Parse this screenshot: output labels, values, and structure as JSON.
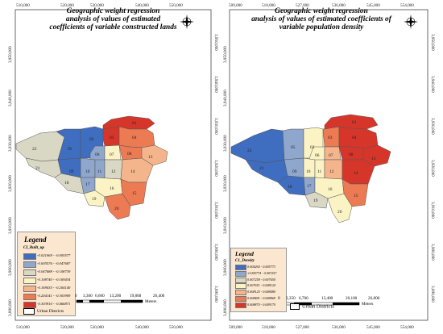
{
  "left_map": {
    "title_lines": [
      "Geographic weight regression",
      "analysis of values of estimated",
      "coefficients of variable constructed lands"
    ],
    "top_ticks": [
      "510,000",
      "520,000",
      "530,000",
      "540,000",
      "550,000"
    ],
    "bottom_ticks": [
      "510,000",
      "520,000",
      "530,000",
      "540,000",
      "550,000"
    ],
    "left_ticks": [
      "3,950,000",
      "3,940,000",
      "3,930,000",
      "3,920,000",
      "3,910,000",
      "3,900,000",
      "3,890,000"
    ],
    "right_ticks": [
      "3,950,000",
      "3,940,000",
      "3,930,000",
      "3,920,000",
      "3,910,000",
      "3,900,000",
      "3,890,000"
    ],
    "legend": {
      "title": "Legend",
      "subtitle": "CI_Built_up",
      "classes": [
        {
          "label": "-0.021069 - -0.005577",
          "color": "#3f6dbf"
        },
        {
          "label": "-0.005576 - -0.047687",
          "color": "#8fa7cc"
        },
        {
          "label": "-0.047688 - -0.108739",
          "color": "#d9d8c4"
        },
        {
          "label": "-0.108740 - -0.169434",
          "color": "#fbf3c4"
        },
        {
          "label": "-0.169435 - -0.204140",
          "color": "#f4b58d"
        },
        {
          "label": "-0.204141 - -0.303909",
          "color": "#ec7a53"
        },
        {
          "label": "-0.303910 - -0.466871",
          "color": "#d6362a"
        }
      ],
      "urban_districts": "Urban Districts"
    },
    "scale": {
      "labels": [
        "0",
        "3,300",
        "6,600",
        "13,200",
        "19,800",
        "26,400"
      ],
      "unit": "Meters"
    }
  },
  "right_map": {
    "title_lines": [
      "Geographic weight regression",
      "analysis of values of estimated coefficients of",
      "variable population density"
    ],
    "top_ticks": [
      "509,000",
      "518,000",
      "527,000",
      "536,000",
      "545,000",
      "554,000"
    ],
    "bottom_ticks": [
      "509,000",
      "518,000",
      "527,000",
      "536,000",
      "545,000",
      "554,000"
    ],
    "left_ticks": [
      "3,950,000",
      "3,940,000",
      "3,930,000",
      "3,920,000",
      "3,910,000",
      "3,900,000",
      "3,890,000"
    ],
    "right_ticks": [
      "3,950,000",
      "3,940,000",
      "3,930,000",
      "3,920,000",
      "3,910,000",
      "3,900,000",
      "3,890,000"
    ],
    "legend": {
      "title": "Legend",
      "subtitle": "C1_Density",
      "classes": [
        {
          "label": "0.004260 - 0.005773",
          "color": "#3f6dbf"
        },
        {
          "label": "-0.005774 - 0.007257",
          "color": "#8fa7cc"
        },
        {
          "label": "0.007258 - 0.007650",
          "color": "#d9d8c4"
        },
        {
          "label": "0.007651 - 0.008124",
          "color": "#fbf3c4"
        },
        {
          "label": "0.008125 - 0.008480",
          "color": "#f4b58d"
        },
        {
          "label": "0.008481 - 0.008869",
          "color": "#ec7a53"
        },
        {
          "label": "0.008870 - 0.009170",
          "color": "#d6362a"
        }
      ],
      "urban_districts": "Urban Districts"
    },
    "scale": {
      "labels": [
        "0",
        "3,350",
        "6,700",
        "13,400",
        "20,100",
        "26,800"
      ],
      "unit": "Meters"
    }
  },
  "district_labels": [
    "01",
    "02",
    "03",
    "04",
    "05",
    "06",
    "07",
    "08",
    "09",
    "10",
    "11",
    "12",
    "13",
    "14",
    "15",
    "16",
    "17",
    "18",
    "19",
    "20",
    "21",
    "22"
  ],
  "north_arrow": "north-arrow-icon",
  "colors": {
    "frame": "#444444",
    "outline": "#555555",
    "legend_bg": "#fbe7cf"
  }
}
